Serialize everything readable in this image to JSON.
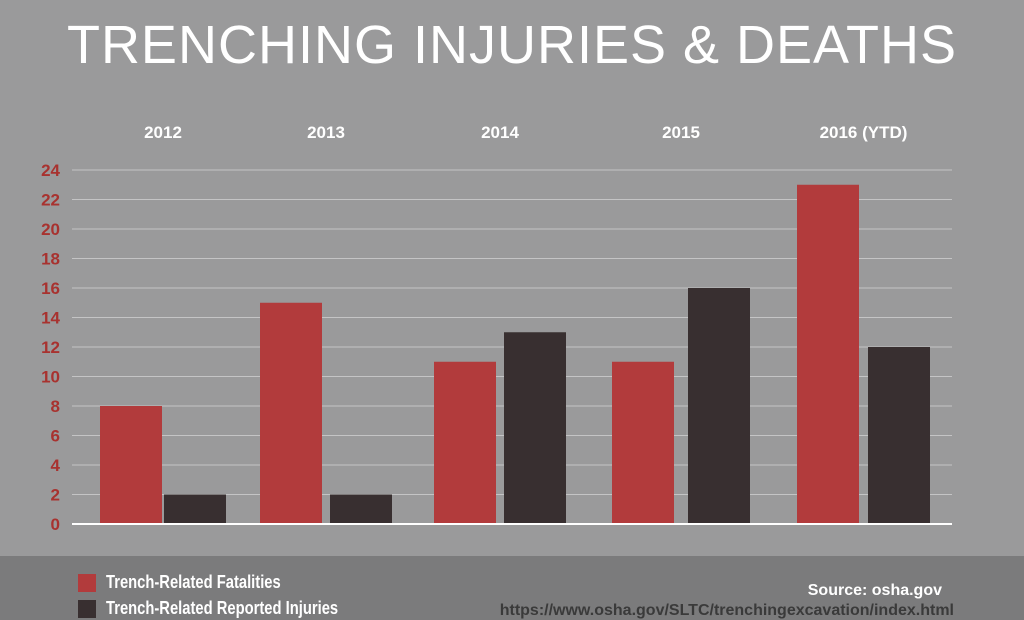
{
  "chart_data": {
    "type": "bar",
    "title": "TRENCHING INJURIES & DEATHS",
    "categories": [
      "2012",
      "2013",
      "2014",
      "2015",
      "2016 (YTD)"
    ],
    "series": [
      {
        "name": "Trench-Related Fatalities",
        "values": [
          8,
          15,
          11,
          11,
          23
        ],
        "color": "#b23b3c"
      },
      {
        "name": "Trench-Related Reported Injuries",
        "values": [
          2,
          2,
          13,
          16,
          12
        ],
        "color": "#382f30"
      }
    ],
    "ylim": [
      0,
      24
    ],
    "yticks": [
      0,
      2,
      4,
      6,
      8,
      10,
      12,
      14,
      16,
      18,
      20,
      22,
      24
    ],
    "grid": true,
    "legend": "bottom-left",
    "xlabel": "",
    "ylabel": ""
  },
  "colors": {
    "background": "#9a9a9b",
    "footer": "#7b7b7c",
    "tick_label": "#a8322f",
    "gridline": "#c4c4c5"
  },
  "footer": {
    "source": "Source: osha.gov",
    "url": "https://www.osha.gov/SLTC/trenchingexcavation/index.html"
  }
}
